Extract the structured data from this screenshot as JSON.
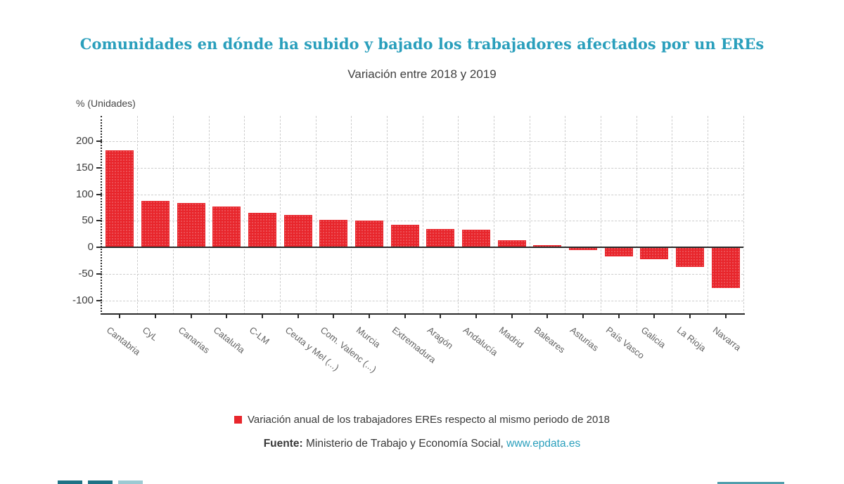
{
  "header": {
    "title": "Comunidades en dónde ha subido y bajado los trabajadores afectados por un EREs",
    "subtitle": "Variación entre 2018 y 2019",
    "title_color": "#2a9fbc"
  },
  "axis": {
    "unit_label": "% (Unidades)"
  },
  "chart_data": {
    "type": "bar",
    "title": "Comunidades en dónde ha subido y bajado los trabajadores afectados por un EREs",
    "subtitle": "Variación entre 2018 y 2019",
    "ylabel": "% (Unidades)",
    "xlabel": "",
    "categories": [
      "Cantabria",
      "CyL",
      "Canarias",
      "Cataluña",
      "C-LM",
      "Ceuta y Mel (...)",
      "Com. Valenc (...)",
      "Murcia",
      "Extremadura",
      "Aragón",
      "Andalucía",
      "Madrid",
      "Baleares",
      "Asturias",
      "País Vasco",
      "Galicia",
      "La Rioja",
      "Navarra"
    ],
    "values": [
      183,
      88,
      84,
      77,
      65,
      61,
      52,
      50,
      42,
      35,
      33,
      13,
      4,
      -5,
      -17,
      -22,
      -37,
      -77
    ],
    "series_name": "Variación anual de los trabajadores EREs respecto al mismo periodo de 2018",
    "bar_color": "#e8262c",
    "yticks": [
      200,
      150,
      100,
      50,
      0,
      -50,
      -100
    ],
    "ylim": [
      -127,
      248
    ],
    "grid": true,
    "legend_position": "bottom"
  },
  "legend": {
    "label": "Variación anual de los trabajadores EREs respecto al mismo periodo de 2018",
    "swatch_color": "#e8262c"
  },
  "source": {
    "prefix": "Fuente:",
    "text": " Ministerio de Trabajo y Economía Social, ",
    "link": "www.epdata.es"
  },
  "decor": {
    "left_bar_colors": [
      "#1e7386",
      "#1e7386",
      "#9ccad3"
    ],
    "right_bar_color": "#4f9dab"
  }
}
